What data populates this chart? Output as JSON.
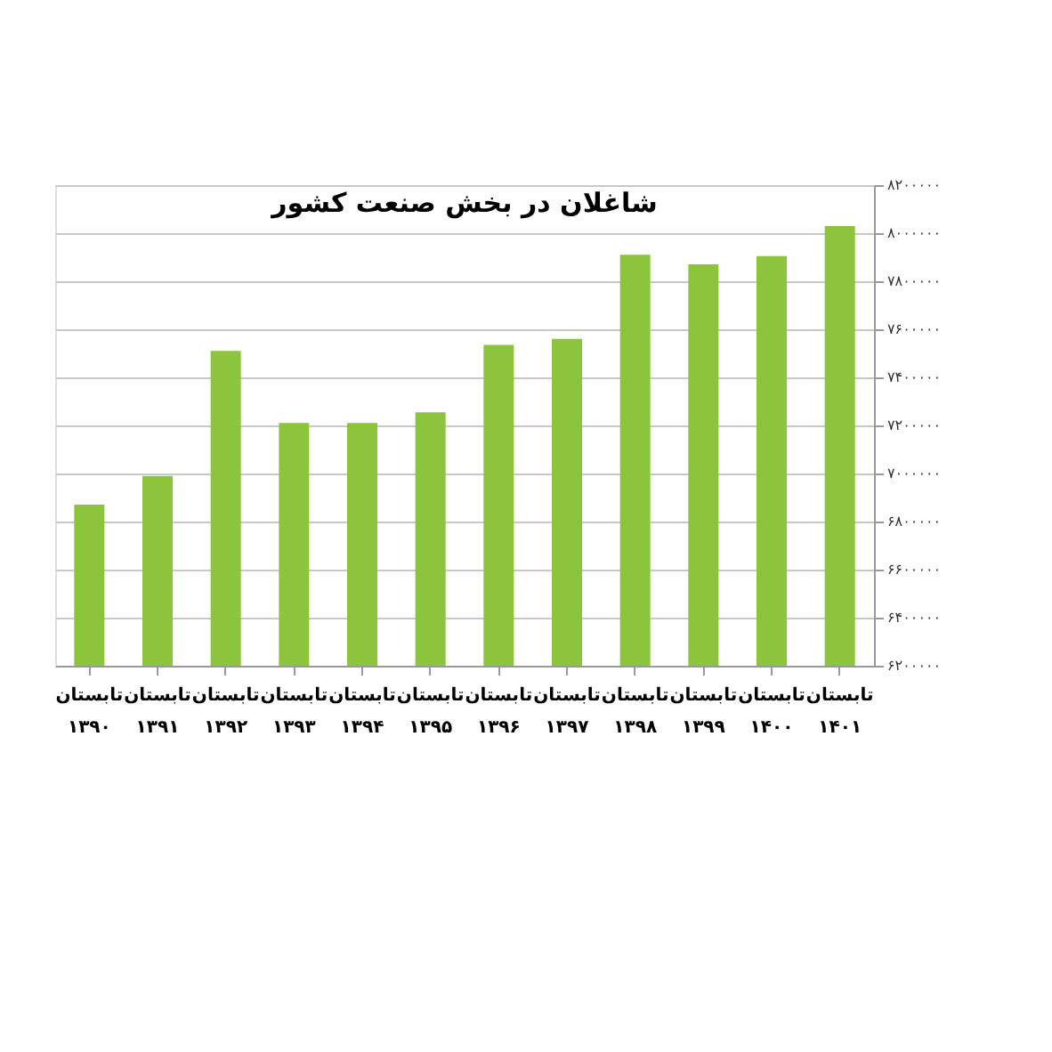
{
  "chart_data": {
    "type": "bar",
    "title": "شاغلان در بخش صنعت کشور",
    "categories": [
      "تابستان\n۱۳۹۰",
      "تابستان\n۱۳۹۱",
      "تابستان\n۱۳۹۲",
      "تابستان\n۱۳۹۳",
      "تابستان\n۱۳۹۴",
      "تابستان\n۱۳۹۵",
      "تابستان\n۱۳۹۶",
      "تابستان\n۱۳۹۷",
      "تابستان\n۱۳۹۸",
      "تابستان\n۱۳۹۹",
      "تابستان\n۱۴۰۰",
      "تابستان\n۱۴۰۱"
    ],
    "values": [
      6870000,
      6990000,
      7510000,
      7210000,
      7210000,
      7255000,
      7535000,
      7560000,
      7910000,
      7870000,
      7905000,
      8030000
    ],
    "color": "#8cc43c",
    "ylim": [
      6200000,
      8200000
    ],
    "yticks": [
      {
        "value": 6200000,
        "label": "۶۲۰۰۰۰۰"
      },
      {
        "value": 6400000,
        "label": "۶۴۰۰۰۰۰"
      },
      {
        "value": 6600000,
        "label": "۶۶۰۰۰۰۰"
      },
      {
        "value": 6800000,
        "label": "۶۸۰۰۰۰۰"
      },
      {
        "value": 7000000,
        "label": "۷۰۰۰۰۰۰"
      },
      {
        "value": 7200000,
        "label": "۷۲۰۰۰۰۰"
      },
      {
        "value": 7400000,
        "label": "۷۴۰۰۰۰۰"
      },
      {
        "value": 7600000,
        "label": "۷۶۰۰۰۰۰"
      },
      {
        "value": 7800000,
        "label": "۷۸۰۰۰۰۰"
      },
      {
        "value": 8000000,
        "label": "۸۰۰۰۰۰۰"
      },
      {
        "value": 8200000,
        "label": "۸۲۰۰۰۰۰"
      }
    ],
    "grid": "y"
  }
}
